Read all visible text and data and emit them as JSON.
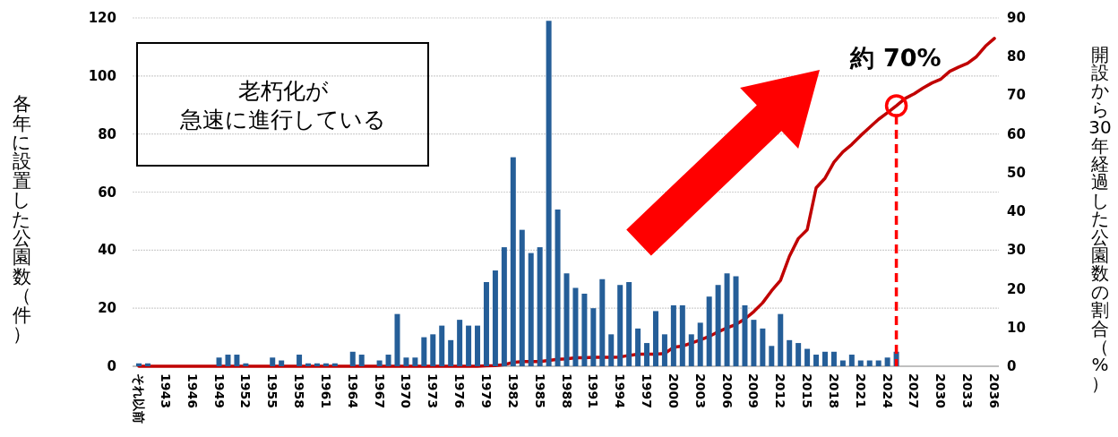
{
  "chart_data": {
    "type": "bar",
    "ylabel": "各年に設置した公園数（件）",
    "y2label": "開設から30年経過した公園数の割合（%）",
    "categories": [
      "それ以前",
      null,
      null,
      "1943",
      null,
      null,
      "1946",
      null,
      null,
      "1949",
      null,
      null,
      "1952",
      null,
      null,
      "1955",
      null,
      null,
      "1958",
      null,
      null,
      "1961",
      null,
      null,
      "1964",
      null,
      null,
      "1967",
      null,
      null,
      "1970",
      null,
      null,
      "1973",
      null,
      null,
      "1976",
      null,
      null,
      "1979",
      null,
      null,
      "1982",
      null,
      null,
      "1985",
      null,
      null,
      "1988",
      null,
      null,
      "1991",
      null,
      null,
      "1994",
      null,
      null,
      "1997",
      null,
      null,
      "2000",
      null,
      null,
      "2003",
      null,
      null,
      "2006",
      null,
      null,
      "2009",
      null,
      null,
      "2012",
      null,
      null,
      "2015",
      null,
      null,
      "2018",
      null,
      null,
      "2021",
      null,
      null,
      "2024",
      null,
      null,
      "2027",
      null,
      null,
      "2030",
      null,
      null,
      "2033",
      null,
      null,
      "2036"
    ],
    "series": [
      {
        "color": "#255e98",
        "values": [
          1,
          1,
          null,
          null,
          null,
          null,
          null,
          null,
          null,
          3,
          4,
          4,
          1,
          null,
          null,
          3,
          2,
          null,
          4,
          1,
          1,
          1,
          1,
          null,
          5,
          4,
          null,
          2,
          4,
          18,
          3,
          3,
          10,
          11,
          14,
          9,
          16,
          14,
          14,
          29,
          33,
          41,
          72,
          47,
          39,
          41,
          119,
          54,
          32,
          27,
          25,
          20,
          30,
          11,
          28,
          29,
          13,
          8,
          19,
          11,
          21,
          21,
          11,
          15,
          24,
          28,
          32,
          31,
          21,
          16,
          13,
          7,
          18,
          9,
          8,
          6,
          4,
          5,
          5,
          2,
          4,
          2,
          2,
          2,
          3,
          5,
          null,
          null,
          null,
          null,
          null,
          null,
          null,
          null,
          null,
          null,
          null
        ]
      },
      {
        "type": "line",
        "axis": "y2",
        "color": "#c00000",
        "values": [
          0,
          0,
          0,
          0,
          0,
          0,
          0,
          0,
          0,
          0,
          0,
          0,
          0,
          0,
          0,
          0,
          0,
          0,
          0,
          0,
          0,
          0,
          0,
          0,
          0,
          0,
          0,
          0,
          0,
          0,
          0,
          0,
          0,
          0,
          0,
          0,
          0,
          0,
          0,
          0.1,
          0.2,
          0.4,
          1.0,
          1.2,
          1.2,
          1.2,
          1.5,
          1.8,
          1.9,
          2.2,
          2.2,
          2.3,
          2.3,
          2.3,
          2.4,
          2.8,
          3.1,
          3.1,
          3.1,
          3.3,
          4.9,
          5.2,
          6.0,
          6.8,
          7.7,
          8.9,
          9.9,
          10.8,
          12.2,
          14.1,
          16.4,
          19.5,
          22.2,
          28.4,
          33.0,
          35.3,
          46.1,
          48.6,
          52.7,
          55.4,
          57.3,
          59.6,
          61.7,
          63.8,
          65.5,
          67.3,
          69.2,
          70.4,
          71.9,
          73.2,
          74.2,
          76.2,
          77.3,
          78.3,
          80.0,
          82.7,
          84.7
        ]
      }
    ],
    "ylim": [
      0,
      120
    ],
    "yticks": [
      0,
      20,
      40,
      60,
      80,
      100,
      120
    ],
    "y2lim": [
      0,
      90
    ],
    "y2ticks": [
      0,
      10,
      20,
      30,
      40,
      50,
      60,
      70,
      80,
      90
    ],
    "grid": "y",
    "annotations": [
      "老朽化が",
      "急速に進行している",
      "約 70%"
    ]
  }
}
